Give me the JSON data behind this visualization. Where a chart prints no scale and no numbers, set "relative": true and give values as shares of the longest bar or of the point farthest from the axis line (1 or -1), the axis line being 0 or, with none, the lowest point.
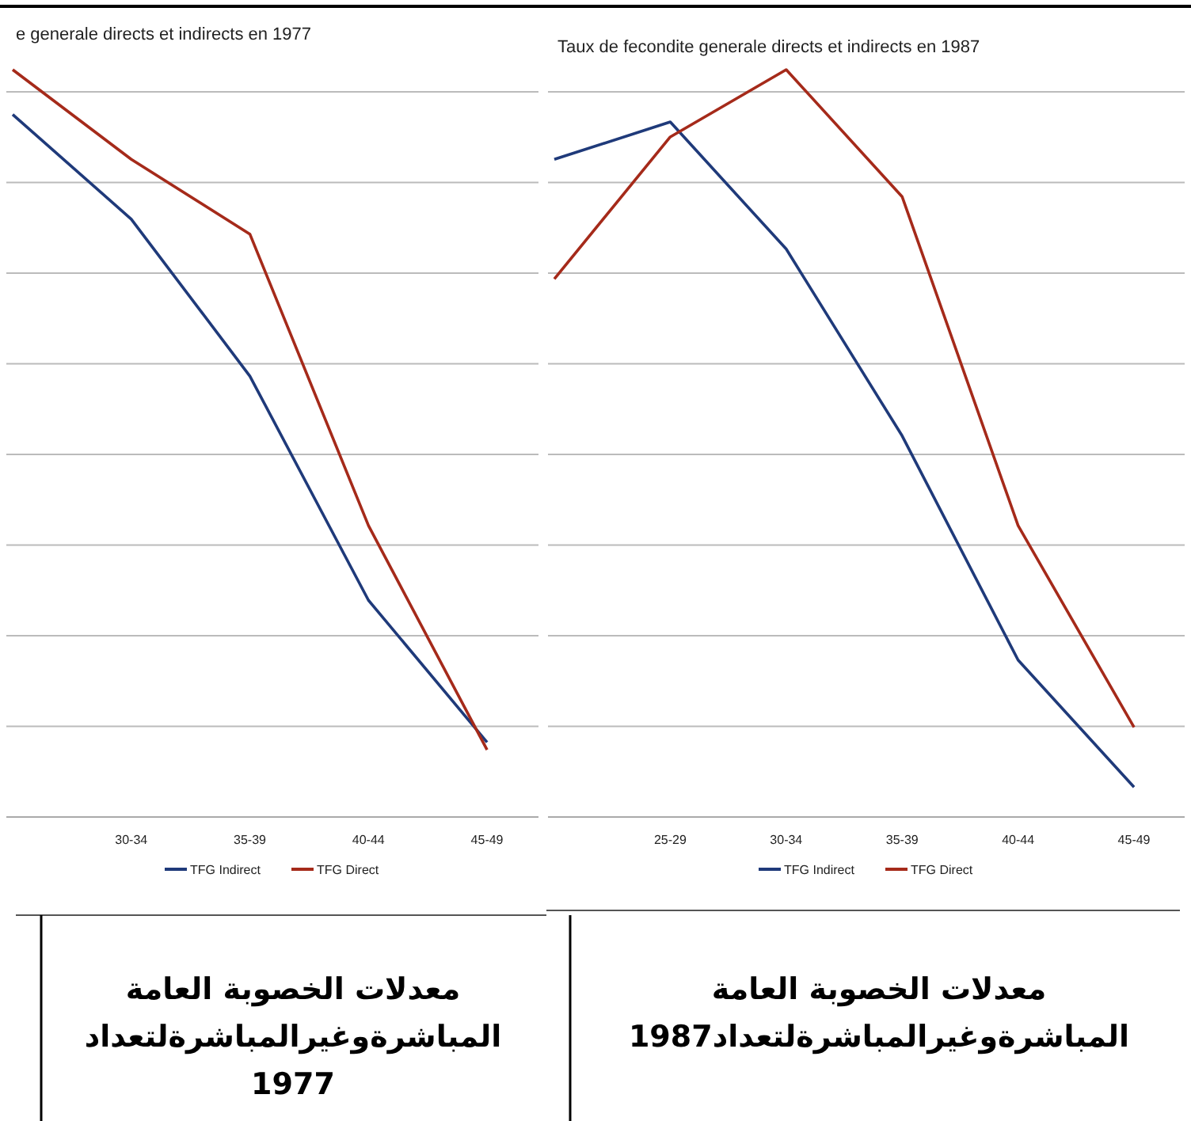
{
  "chart_data": [
    {
      "type": "line",
      "title": "e generale directs et indirects en 1977",
      "relative": true,
      "categories": [
        null,
        "30-34",
        "35-39",
        "40-44",
        "45-49"
      ],
      "grid": "y",
      "legend": "bottom",
      "series": [
        {
          "name": "TFG Indirect",
          "color": "#1f3a7a",
          "values": [
            0.94,
            0.8,
            0.59,
            0.29,
            0.1
          ]
        },
        {
          "name": "TFG Direct",
          "color": "#a52a1a",
          "values": [
            1,
            0.88,
            0.78,
            0.39,
            0.09
          ]
        }
      ],
      "annotations": [
        "معدلات الخصوبة العامة المباشرةوغيرالمباشرةلتعداد 1977"
      ]
    },
    {
      "type": "line",
      "title": "Taux de fecondite generale directs et indirects en 1987",
      "relative": true,
      "categories": [
        null,
        "25-29",
        "30-34",
        "35-39",
        "40-44",
        "45-49"
      ],
      "grid": "y",
      "legend": "bottom",
      "series": [
        {
          "name": "TFG Indirect",
          "color": "#1f3a7a",
          "values": [
            0.88,
            0.93,
            0.76,
            0.51,
            0.21,
            0.04
          ]
        },
        {
          "name": "TFG Direct",
          "color": "#a52a1a",
          "values": [
            0.72,
            0.91,
            1,
            0.83,
            0.39,
            0.12
          ]
        }
      ],
      "annotations": [
        "معدلات الخصوبة العامة المباشرةوغيرالمباشرةلتعداد1987"
      ]
    }
  ]
}
